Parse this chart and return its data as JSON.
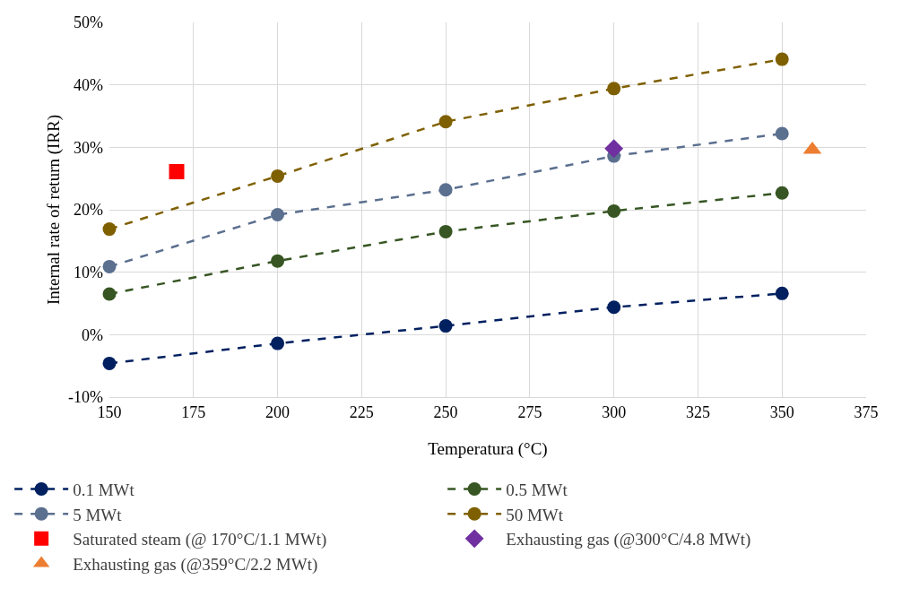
{
  "chart_data": {
    "type": "line",
    "xlabel": "Temperatura (°C)",
    "ylabel": "Internal rate of return (IRR)",
    "xlim": [
      150,
      375
    ],
    "xticks": [
      150,
      175,
      200,
      225,
      250,
      275,
      300,
      325,
      350,
      375
    ],
    "ylim": [
      -10,
      50
    ],
    "yticks": [
      {
        "value": -10,
        "label": "-10%"
      },
      {
        "value": 0,
        "label": "0%"
      },
      {
        "value": 10,
        "label": "10%"
      },
      {
        "value": 20,
        "label": "20%"
      },
      {
        "value": 30,
        "label": "30%"
      },
      {
        "value": 40,
        "label": "40%"
      },
      {
        "value": 50,
        "label": "50%"
      }
    ],
    "grid": true,
    "legend": "bottom",
    "series": [
      {
        "name": "0.1 MWt",
        "marker": "circle",
        "line_style": "dashed",
        "color": "#002060",
        "x": [
          150,
          200,
          250,
          300,
          350
        ],
        "values": [
          -4.6,
          -1.4,
          1.4,
          4.4,
          6.6
        ]
      },
      {
        "name": "0.5 MWt",
        "marker": "circle",
        "line_style": "dashed",
        "color": "#375623",
        "x": [
          150,
          200,
          250,
          300,
          350
        ],
        "values": [
          6.5,
          11.8,
          16.5,
          19.8,
          22.7
        ]
      },
      {
        "name": "5 MWt",
        "marker": "circle",
        "line_style": "dashed",
        "color": "#5b6f8f",
        "x": [
          150,
          200,
          250,
          300,
          350
        ],
        "values": [
          10.9,
          19.2,
          23.2,
          28.6,
          32.2
        ]
      },
      {
        "name": "50 MWt",
        "marker": "circle",
        "line_style": "dashed",
        "color": "#7f6000",
        "x": [
          150,
          200,
          250,
          300,
          350
        ],
        "values": [
          16.9,
          25.4,
          34.1,
          39.4,
          44.1
        ]
      },
      {
        "name": "Saturated steam (@ 170°C/1.1 MWt)",
        "type": "scatter",
        "marker": "square",
        "color": "#ff0000",
        "x": [
          170
        ],
        "values": [
          26.1
        ]
      },
      {
        "name": "Exhausting gas (@300°C/4.8 MWt)",
        "type": "scatter",
        "marker": "diamond",
        "color": "#7030a0",
        "x": [
          300
        ],
        "values": [
          29.8
        ]
      },
      {
        "name": "Exhausting gas (@359°C/2.2 MWt)",
        "type": "scatter",
        "marker": "triangle",
        "color": "#ed7d31",
        "x": [
          359
        ],
        "values": [
          29.6
        ]
      }
    ]
  }
}
